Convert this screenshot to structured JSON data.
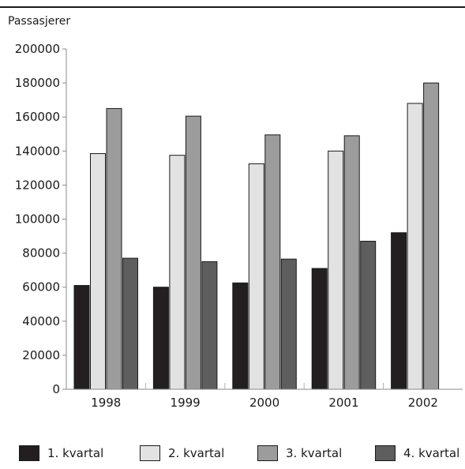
{
  "chart_data": {
    "type": "bar",
    "title": "",
    "xlabel": "",
    "ylabel": "Passasjerer",
    "ylim": [
      0,
      200000
    ],
    "yticks": [
      0,
      20000,
      40000,
      60000,
      80000,
      100000,
      120000,
      140000,
      160000,
      180000,
      200000
    ],
    "ytick_labels": [
      "0",
      "20000",
      "40000",
      "60000",
      "80000",
      "100000",
      "120000",
      "140000",
      "160000",
      "180000",
      "200000"
    ],
    "categories": [
      "1998",
      "1999",
      "2000",
      "2001",
      "2002"
    ],
    "series": [
      {
        "name": "1. kvartal",
        "values": [
          61000,
          60000,
          62500,
          71000,
          92000
        ],
        "color": "#231f20"
      },
      {
        "name": "2. kvartal",
        "values": [
          138500,
          137500,
          132500,
          140000,
          168000
        ],
        "color": "#e2e2e2"
      },
      {
        "name": "3. kvartal",
        "values": [
          165000,
          160500,
          149500,
          149000,
          180000
        ],
        "color": "#9c9c9c"
      },
      {
        "name": "4. kvartal",
        "values": [
          77000,
          75000,
          76500,
          87000,
          null
        ],
        "color": "#5e5e5e"
      }
    ],
    "grid": false,
    "legend_position": "bottom"
  }
}
